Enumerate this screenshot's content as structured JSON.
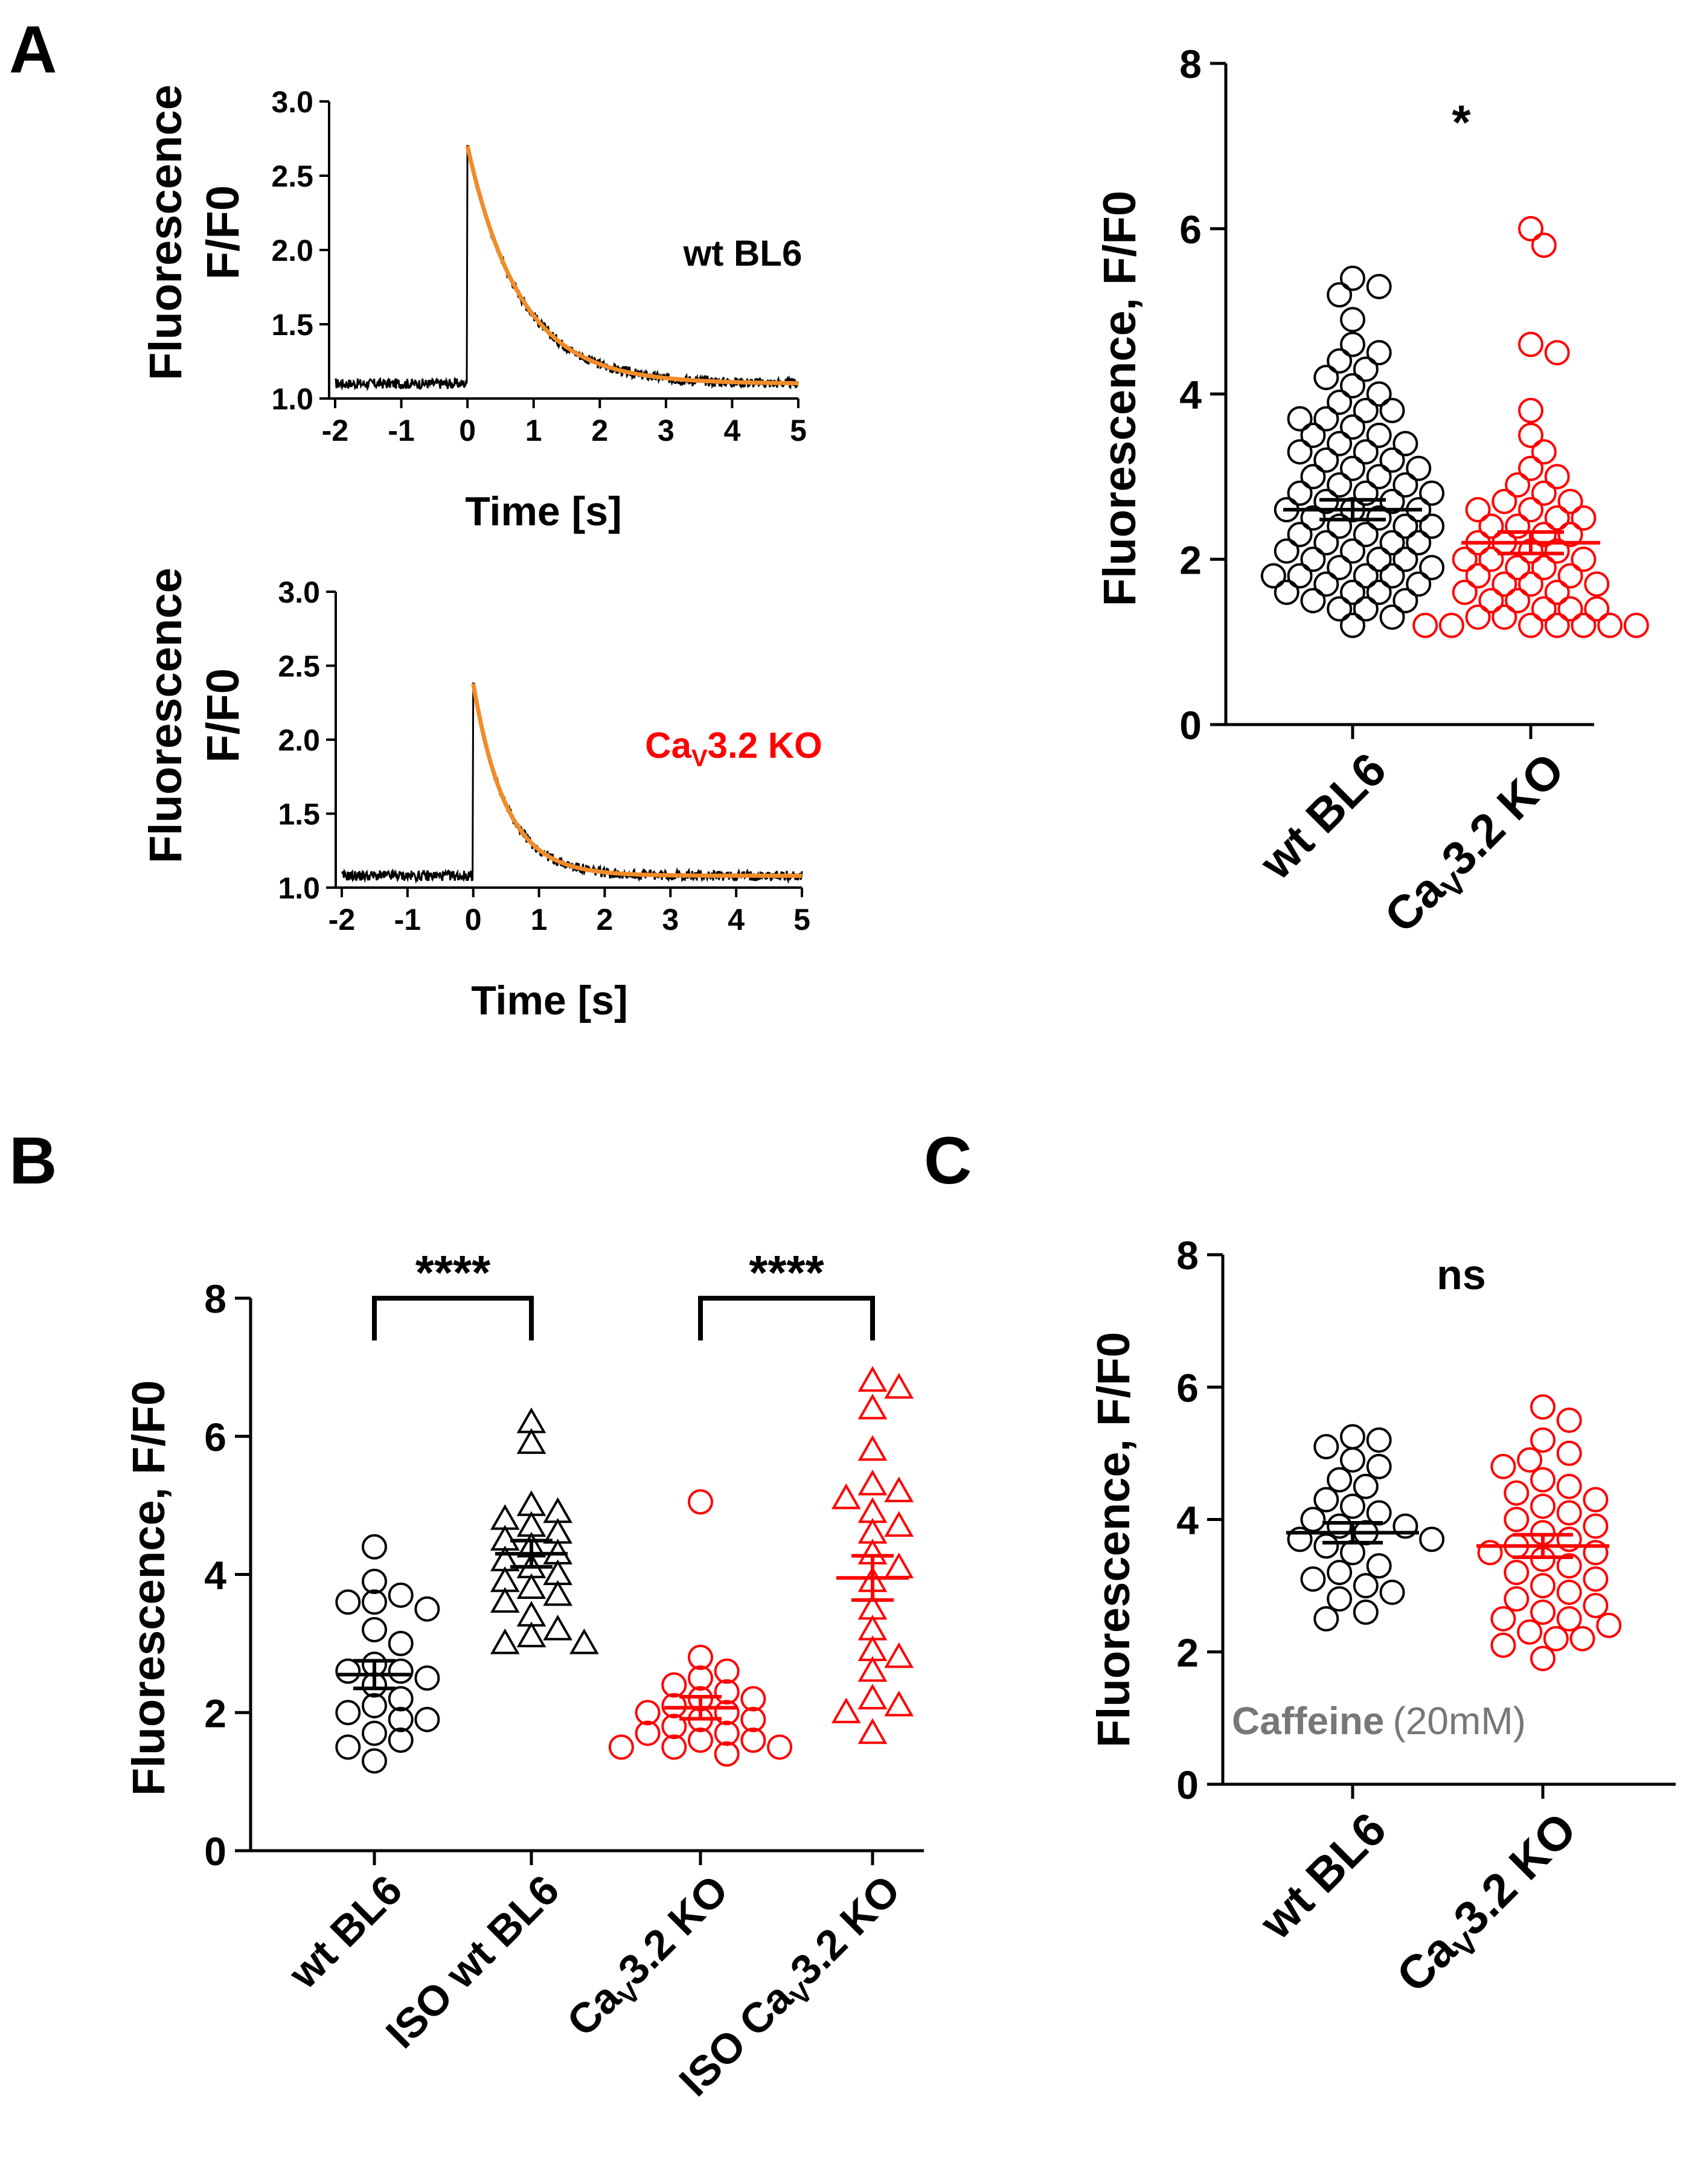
{
  "panels": {
    "A": {
      "letter": "A",
      "traces": [
        {
          "label": "wt BL6",
          "label_color": "#000000",
          "ylabel_line1": "Fluorescence",
          "ylabel_line2": "F/F0",
          "xlabel": "Time [s]",
          "xlim": [
            -2,
            5
          ],
          "ylim": [
            1.0,
            3.0
          ],
          "xticks": [
            "-2",
            "-1",
            "0",
            "1",
            "2",
            "3",
            "4",
            "5"
          ],
          "yticks": [
            "1.0",
            "1.5",
            "2.0",
            "2.5",
            "3.0"
          ],
          "baseline": 1.1,
          "peak": 2.7,
          "tau": 0.8,
          "fit_color": "#f28c28",
          "trace_color": "#000000"
        },
        {
          "label_prefix": "Ca",
          "label_sub": "V",
          "label_suffix": "3.2 KO",
          "label_color": "#ff0000",
          "ylabel_line1": "Fluorescence",
          "ylabel_line2": "F/F0",
          "xlabel": "Time [s]",
          "xlim": [
            -2,
            5
          ],
          "ylim": [
            1.0,
            3.0
          ],
          "xticks": [
            "-2",
            "-1",
            "0",
            "1",
            "2",
            "3",
            "4",
            "5"
          ],
          "yticks": [
            "1.0",
            "1.5",
            "2.0",
            "2.5",
            "3.0"
          ],
          "baseline": 1.08,
          "peak": 2.38,
          "tau": 0.5,
          "fit_color": "#f28c28",
          "trace_color": "#000000"
        }
      ],
      "scatter": {
        "ylabel": "Fluorescence, F/F0",
        "ylim": [
          0,
          8
        ],
        "yticks": [
          "0",
          "2",
          "4",
          "6",
          "8"
        ],
        "significance": "*",
        "groups": [
          {
            "label": "wt BL6",
            "color": "#000000",
            "marker": "circle",
            "mean": 2.6,
            "sem": 0.12,
            "values": [
              5.4,
              5.3,
              5.2,
              4.9,
              4.6,
              4.5,
              4.4,
              4.3,
              4.2,
              4.1,
              4.0,
              3.9,
              3.8,
              3.8,
              3.7,
              3.7,
              3.6,
              3.5,
              3.5,
              3.4,
              3.4,
              3.3,
              3.3,
              3.2,
              3.2,
              3.1,
              3.1,
              3.0,
              3.0,
              2.9,
              2.9,
              2.8,
              2.8,
              2.8,
              2.7,
              2.7,
              2.6,
              2.6,
              2.6,
              2.5,
              2.5,
              2.4,
              2.4,
              2.4,
              2.3,
              2.3,
              2.2,
              2.2,
              2.2,
              2.1,
              2.1,
              2.0,
              2.0,
              2.0,
              1.9,
              1.9,
              1.8,
              1.8,
              1.8,
              1.8,
              1.7,
              1.7,
              1.6,
              1.6,
              1.6,
              1.5,
              1.5,
              1.4,
              1.4,
              1.3,
              1.2
            ]
          },
          {
            "label_prefix": "Ca",
            "label_sub": "V",
            "label_suffix": "3.2 KO",
            "color": "#ff0000",
            "marker": "circle",
            "mean": 2.2,
            "sem": 0.13,
            "values": [
              6.0,
              5.8,
              4.6,
              4.5,
              3.8,
              3.5,
              3.3,
              3.1,
              3.0,
              2.9,
              2.8,
              2.7,
              2.7,
              2.6,
              2.6,
              2.5,
              2.5,
              2.4,
              2.4,
              2.3,
              2.3,
              2.2,
              2.2,
              2.1,
              2.1,
              2.0,
              2.0,
              2.0,
              1.9,
              1.9,
              1.8,
              1.8,
              1.7,
              1.7,
              1.7,
              1.6,
              1.6,
              1.5,
              1.5,
              1.4,
              1.4,
              1.4,
              1.3,
              1.3,
              1.2,
              1.2,
              1.2,
              1.2,
              1.2,
              1.2,
              1.2
            ]
          }
        ]
      }
    },
    "B": {
      "letter": "B",
      "ylabel": "Fluorescence, F/F0",
      "ylim": [
        0,
        8
      ],
      "yticks": [
        "0",
        "2",
        "4",
        "6",
        "8"
      ],
      "brackets": [
        {
          "from": 0,
          "to": 1,
          "label": "****"
        },
        {
          "from": 2,
          "to": 3,
          "label": "****"
        }
      ],
      "groups": [
        {
          "label": "wt BL6",
          "color": "#000000",
          "marker": "circle",
          "mean": 2.55,
          "sem": 0.2,
          "values": [
            4.4,
            3.9,
            3.7,
            3.6,
            3.6,
            3.5,
            3.2,
            3.0,
            2.7,
            2.6,
            2.6,
            2.5,
            2.4,
            2.2,
            2.1,
            2.0,
            1.9,
            1.9,
            1.7,
            1.6,
            1.5,
            1.3
          ]
        },
        {
          "label": "ISO wt BL6",
          "color": "#000000",
          "marker": "triangle",
          "mean": 4.3,
          "sem": 0.19,
          "values": [
            6.2,
            5.9,
            5.0,
            4.9,
            4.8,
            4.7,
            4.6,
            4.5,
            4.4,
            4.3,
            4.2,
            4.1,
            4.0,
            3.9,
            3.8,
            3.7,
            3.6,
            3.4,
            3.2,
            3.1,
            3.0,
            3.0
          ]
        },
        {
          "label_prefix": "Ca",
          "label_sub": "V",
          "label_suffix": "3.2 KO",
          "color": "#ff0000",
          "marker": "circle",
          "mean": 2.07,
          "sem": 0.16,
          "values": [
            5.05,
            2.8,
            2.6,
            2.5,
            2.4,
            2.3,
            2.2,
            2.2,
            2.1,
            2.0,
            2.0,
            1.9,
            1.9,
            1.8,
            1.7,
            1.7,
            1.6,
            1.6,
            1.5,
            1.5,
            1.5,
            1.4
          ]
        },
        {
          "label_prefix": "ISO Ca",
          "label_sub": "V",
          "label_suffix": "3.2 KO",
          "color": "#ff0000",
          "marker": "triangle",
          "mean": 3.95,
          "sem": 0.32,
          "values": [
            6.8,
            6.7,
            6.4,
            5.8,
            5.3,
            5.2,
            5.1,
            4.9,
            4.7,
            4.6,
            4.3,
            4.1,
            3.9,
            3.5,
            3.2,
            2.9,
            2.8,
            2.6,
            2.2,
            2.1,
            2.0,
            1.7
          ]
        }
      ]
    },
    "C": {
      "letter": "C",
      "ylabel": "Fluorescence, F/F0",
      "ylim": [
        0,
        8
      ],
      "yticks": [
        "0",
        "2",
        "4",
        "6",
        "8"
      ],
      "significance": "ns",
      "annotation_bold": "Caffeine",
      "annotation_normal": "(20mM)",
      "annotation_color": "#777777",
      "groups": [
        {
          "label": "wt BL6",
          "color": "#000000",
          "marker": "circle",
          "mean": 3.8,
          "sem": 0.15,
          "values": [
            5.25,
            5.2,
            5.1,
            4.9,
            4.8,
            4.6,
            4.5,
            4.3,
            4.2,
            4.1,
            4.0,
            3.9,
            3.9,
            3.8,
            3.7,
            3.7,
            3.6,
            3.5,
            3.3,
            3.2,
            3.1,
            3.0,
            2.9,
            2.8,
            2.6,
            2.5
          ]
        },
        {
          "label_prefix": "Ca",
          "label_sub": "V",
          "label_suffix": "3.2 KO",
          "color": "#ff0000",
          "marker": "circle",
          "mean": 3.6,
          "sem": 0.17,
          "values": [
            5.7,
            5.5,
            5.2,
            5.0,
            4.9,
            4.8,
            4.6,
            4.5,
            4.4,
            4.3,
            4.2,
            4.1,
            4.0,
            3.9,
            3.8,
            3.7,
            3.6,
            3.5,
            3.5,
            3.4,
            3.3,
            3.2,
            3.1,
            3.0,
            2.9,
            2.8,
            2.7,
            2.6,
            2.5,
            2.5,
            2.4,
            2.3,
            2.2,
            2.2,
            2.1,
            1.9
          ]
        }
      ]
    }
  }
}
